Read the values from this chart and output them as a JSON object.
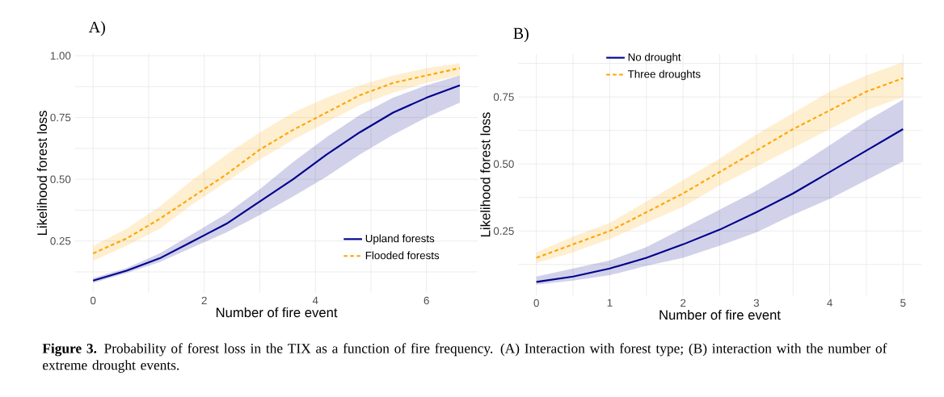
{
  "chart_data": [
    {
      "type": "line",
      "title": "A)",
      "xlabel": "Number of fire event",
      "ylabel": "Likelihood forest loss",
      "x": [
        0,
        0.6,
        1.2,
        1.8,
        2.4,
        3.0,
        3.6,
        4.2,
        4.8,
        5.4,
        6.0,
        6.6
      ],
      "series": [
        {
          "name": "Upland forests",
          "color": "#00008b",
          "line_style": "solid",
          "values": [
            0.09,
            0.13,
            0.18,
            0.25,
            0.32,
            0.41,
            0.5,
            0.6,
            0.69,
            0.77,
            0.83,
            0.88
          ],
          "lower": [
            0.08,
            0.12,
            0.165,
            0.225,
            0.285,
            0.355,
            0.43,
            0.51,
            0.6,
            0.68,
            0.75,
            0.81
          ],
          "upper": [
            0.1,
            0.14,
            0.2,
            0.28,
            0.36,
            0.46,
            0.57,
            0.67,
            0.76,
            0.83,
            0.88,
            0.92
          ]
        },
        {
          "name": "Flooded forests",
          "color": "#ffa500",
          "line_style": "dashed",
          "values": [
            0.2,
            0.26,
            0.34,
            0.43,
            0.52,
            0.62,
            0.7,
            0.77,
            0.84,
            0.89,
            0.92,
            0.95
          ],
          "lower": [
            0.17,
            0.23,
            0.3,
            0.4,
            0.49,
            0.58,
            0.66,
            0.73,
            0.8,
            0.85,
            0.89,
            0.92
          ],
          "upper": [
            0.23,
            0.3,
            0.39,
            0.5,
            0.6,
            0.69,
            0.77,
            0.83,
            0.88,
            0.92,
            0.95,
            0.97
          ]
        }
      ],
      "xlim": [
        -0.33,
        6.93
      ],
      "ylim": [
        0.04,
        1.01
      ],
      "xticks": [
        0,
        {
          "value": 1,
          "label": null
        },
        2,
        {
          "value": 3,
          "label": null
        },
        4,
        {
          "value": 5,
          "label": null
        },
        6
      ],
      "yticks": [
        {
          "value": 0.125,
          "label": null
        },
        {
          "value": 0.25,
          "label": "0.25"
        },
        {
          "value": 0.375,
          "label": null
        },
        {
          "value": 0.5,
          "label": "0.50"
        },
        {
          "value": 0.625,
          "label": null
        },
        {
          "value": 0.75,
          "label": "0.75"
        },
        {
          "value": 0.875,
          "label": null
        },
        {
          "value": 1,
          "label": "1.00"
        }
      ],
      "grid": true,
      "legend": "bottom right",
      "annotations": [
        "**Figure 3.** Probability of forest loss in the TIX as a function of fire frequency. (A) Interaction with forest type; (B) interaction with the number of extreme drought events."
      ]
    },
    {
      "type": "line",
      "title": "B)",
      "xlabel": "Number of fire event",
      "ylabel": "Likelihood forest loss",
      "x": [
        0,
        0.5,
        1,
        1.5,
        2,
        2.5,
        3,
        3.5,
        4,
        4.5,
        5
      ],
      "series": [
        {
          "name": "No drought",
          "color": "#00008b",
          "line_style": "solid",
          "values": [
            0.06,
            0.08,
            0.11,
            0.15,
            0.2,
            0.255,
            0.32,
            0.39,
            0.47,
            0.55,
            0.63
          ],
          "lower": [
            0.05,
            0.065,
            0.085,
            0.12,
            0.15,
            0.195,
            0.245,
            0.31,
            0.37,
            0.44,
            0.51
          ],
          "upper": [
            0.08,
            0.11,
            0.14,
            0.19,
            0.26,
            0.33,
            0.4,
            0.48,
            0.57,
            0.66,
            0.74
          ]
        },
        {
          "name": "Three droughts",
          "color": "#ffa500",
          "line_style": "dashed",
          "values": [
            0.15,
            0.2,
            0.25,
            0.32,
            0.39,
            0.47,
            0.55,
            0.63,
            0.7,
            0.77,
            0.82
          ],
          "lower": [
            0.13,
            0.17,
            0.22,
            0.28,
            0.34,
            0.42,
            0.49,
            0.56,
            0.63,
            0.7,
            0.75
          ],
          "upper": [
            0.17,
            0.23,
            0.28,
            0.36,
            0.44,
            0.52,
            0.61,
            0.69,
            0.77,
            0.83,
            0.88
          ]
        }
      ],
      "xlim": [
        -0.25,
        5.25
      ],
      "ylim": [
        0.01,
        0.91
      ],
      "xticks": [
        0,
        {
          "value": 0.5,
          "label": null
        },
        1,
        {
          "value": 1.5,
          "label": null
        },
        2,
        {
          "value": 2.5,
          "label": null
        },
        3,
        {
          "value": 3.5,
          "label": null
        },
        4,
        {
          "value": 4.5,
          "label": null
        },
        5
      ],
      "yticks": [
        {
          "value": 0.125,
          "label": null
        },
        {
          "value": 0.25,
          "label": "0.25"
        },
        {
          "value": 0.375,
          "label": null
        },
        {
          "value": 0.5,
          "label": "0.50"
        },
        {
          "value": 0.625,
          "label": null
        },
        {
          "value": 0.75,
          "label": "0.75"
        },
        {
          "value": 0.875,
          "label": null
        }
      ],
      "grid": true,
      "legend": "top left"
    }
  ]
}
